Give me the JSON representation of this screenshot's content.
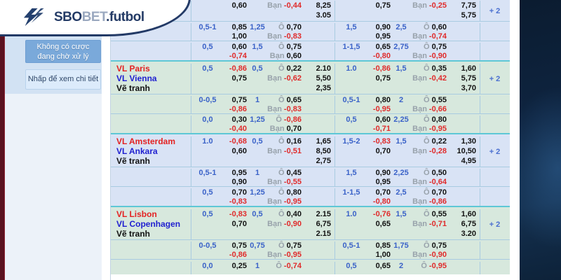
{
  "logo": {
    "sbo": "SBO",
    "bet": "BET",
    "suffix": ".futbol"
  },
  "sidebar": {
    "no_pending_bets_line1": "Không có cược",
    "no_pending_bets_line2": "đang chờ xử lý",
    "view_details": "Nhấp để xem chi tiết"
  },
  "table": {
    "over_label": "Ô",
    "under_label": "Bạn",
    "more_bets_label": "+ 2",
    "blocks": [
      {
        "theme": "blue",
        "teams": [
          "",
          "",
          ""
        ],
        "rows": [
          {
            "partial": "top",
            "left": {
              "odds2": "0,60",
              "under": "-0,44",
              "x12": [
                "8,25",
                "3.05"
              ]
            },
            "right": {
              "odds2": "0,75",
              "under": "-0,25",
              "x12": [
                "7,75",
                "5,75"
              ]
            },
            "more": true
          },
          {
            "left": {
              "hdp": "0,5-1",
              "odds1": "0,85",
              "odds2": "1,00",
              "goal": "1,25",
              "over": "0,70",
              "under": "-0,83"
            },
            "right": {
              "hdp": "1,5",
              "odds1": "0,90",
              "odds2": "0,95",
              "goal": "2,5",
              "over": "0,60",
              "under": "-0,74"
            }
          },
          {
            "left": {
              "hdp": "0,5",
              "odds1": "0,60",
              "odds2": "-0,74",
              "goal": "1,5",
              "over": "0,75",
              "under": "0,60"
            },
            "right": {
              "hdp": "1-1,5",
              "odds1": "0,65",
              "odds2": "-0,80",
              "goal": "2,75",
              "over": "0,75",
              "under": "-0,90"
            }
          }
        ]
      },
      {
        "theme": "green",
        "teams": [
          "VL Paris",
          "VL Vienna",
          "Vẽ tranh"
        ],
        "rows": [
          {
            "left": {
              "hdp": "0,5",
              "odds1": "-0,86",
              "odds2": "0,75",
              "goal": "0,5",
              "over": "0,22",
              "under": "-0,62",
              "x12": [
                "2.10",
                "5,50",
                "2,35"
              ]
            },
            "right": {
              "hdp": "1.0",
              "odds1": "-0,86",
              "odds2": "0,75",
              "goal": "1,5",
              "over": "0,35",
              "under": "-0,42",
              "x12": [
                "1,60",
                "5,75",
                "3,70"
              ]
            },
            "more": true
          },
          {
            "left": {
              "hdp": "0-0,5",
              "odds1": "0,75",
              "odds2": "-0,86",
              "goal": "1",
              "over": "0,65",
              "under": "-0,83"
            },
            "right": {
              "hdp": "0,5-1",
              "odds1": "0,80",
              "odds2": "-0,95",
              "goal": "2",
              "over": "0,55",
              "under": "-0,66"
            }
          },
          {
            "left": {
              "hdp": "0,0",
              "odds1": "0,30",
              "odds2": "-0,40",
              "goal": "1,25",
              "over": "-0,86",
              "under": "0,70"
            },
            "right": {
              "hdp": "0,5",
              "odds1": "0,60",
              "odds2": "-0,71",
              "goal": "2,25",
              "over": "0,80",
              "under": "-0,95"
            }
          }
        ]
      },
      {
        "theme": "blue",
        "teams": [
          "VL Amsterdam",
          "VL Ankara",
          "Vẽ tranh"
        ],
        "rows": [
          {
            "left": {
              "hdp": "1.0",
              "odds1": "-0,68",
              "odds2": "0,60",
              "goal": "0,5",
              "over": "0,16",
              "under": "-0,51",
              "x12": [
                "1,65",
                "8,50",
                "2,75"
              ]
            },
            "right": {
              "hdp": "1,5-2",
              "odds1": "-0,83",
              "odds2": "0,70",
              "goal": "1,5",
              "over": "0,22",
              "under": "-0,28",
              "x12": [
                "1,30",
                "10,50",
                "4,95"
              ]
            },
            "more": true
          },
          {
            "left": {
              "hdp": "0,5-1",
              "odds1": "0,95",
              "odds2": "0,90",
              "goal": "1",
              "over": "0,45",
              "under": "-0,55"
            },
            "right": {
              "hdp": "1,5",
              "odds1": "0,90",
              "odds2": "0,95",
              "goal": "2,25",
              "over": "0,50",
              "under": "-0,64"
            }
          },
          {
            "left": {
              "hdp": "0,5",
              "odds1": "0,70",
              "odds2": "-0,83",
              "goal": "1,25",
              "over": "0,80",
              "under": "-0,95"
            },
            "right": {
              "hdp": "1-1,5",
              "odds1": "0,70",
              "odds2": "-0,80",
              "goal": "2,5",
              "over": "0,70",
              "under": "-0,86"
            }
          }
        ]
      },
      {
        "theme": "green",
        "teams": [
          "VL Lisbon",
          "VL Copenhagen",
          "Vẽ tranh"
        ],
        "rows": [
          {
            "left": {
              "hdp": "0,5",
              "odds1": "-0,83",
              "odds2": "0,70",
              "goal": "0,5",
              "over": "0,40",
              "under": "-0,90",
              "x12": [
                "2.15",
                "6,75",
                "2.15"
              ]
            },
            "right": {
              "hdp": "1.0",
              "odds1": "-0,76",
              "odds2": "0,65",
              "goal": "1,5",
              "over": "0,55",
              "under": "-0,71",
              "x12": [
                "1,60",
                "6,75",
                "3.20"
              ]
            },
            "more": true
          },
          {
            "left": {
              "hdp": "0-0,5",
              "odds1": "0,75",
              "odds2": "-0,86",
              "goal": "0,75",
              "over": "0,75",
              "under": "-0,95"
            },
            "right": {
              "hdp": "0,5-1",
              "odds1": "0,85",
              "odds2": "1,00",
              "goal": "1,75",
              "over": "0,75",
              "under": "-0,90"
            }
          },
          {
            "partial": "bottom",
            "left": {
              "hdp": "0,0",
              "odds1": "0,25",
              "goal": "1",
              "over": "-0,74"
            },
            "right": {
              "hdp": "0,5",
              "odds1": "0,65",
              "goal": "2",
              "over": "-0,95"
            }
          }
        ]
      }
    ]
  },
  "colors": {
    "accent_teal": "#5ec7d6",
    "negative_red": "#e02b2b",
    "value_blue": "#3a62c8",
    "team_home_red": "#e32222",
    "team_away_blue": "#1f1fd0",
    "navy": "#243b66",
    "dark_panel": "#0d2138",
    "maroon": "#5a1220",
    "block_blue_bg": "#d9e3f5",
    "block_green_bg": "#d7e8dd"
  }
}
